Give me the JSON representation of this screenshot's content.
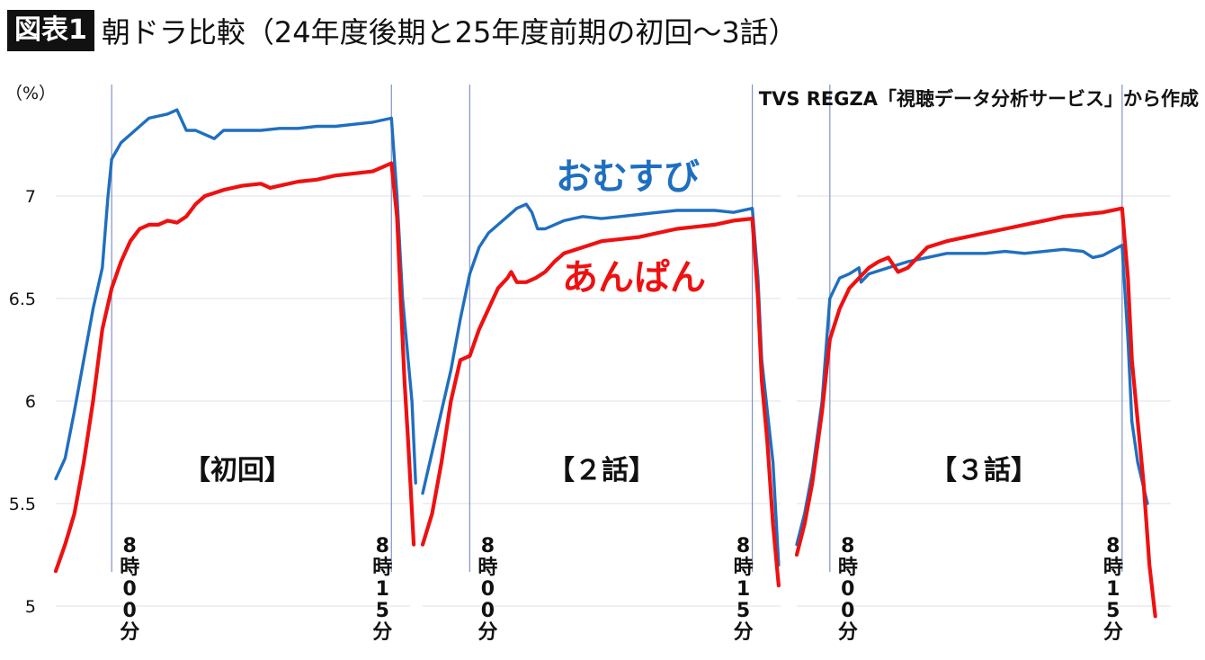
{
  "header": {
    "badge": "図表1",
    "title": "朝ドラ比較（24年度後期と25年度前期の初回〜3話）"
  },
  "y_unit": "（%）",
  "source": "TVS REGZA「視聴データ分析サービス」から作成",
  "colors": {
    "omusubi": "#1f6fc0",
    "anpan": "#ee1111",
    "marker": "#7f92c8",
    "grid": "#dde1e8"
  },
  "chart_data": {
    "type": "line",
    "ylim": [
      5,
      7.5
    ],
    "yticks": [
      {
        "value": 5,
        "label": "5"
      },
      {
        "value": 5.5,
        "label": "5.5"
      },
      {
        "value": 6,
        "label": "6"
      },
      {
        "value": 6.5,
        "label": "6.5"
      },
      {
        "value": 7,
        "label": "7"
      }
    ],
    "grid": true,
    "series_labels": [
      {
        "key": "omusubi",
        "name": "おむすび"
      },
      {
        "key": "anpan",
        "name": "あんぱん"
      }
    ],
    "panels": [
      {
        "label": "【初回】",
        "x_start": -3,
        "x_end": 16,
        "markers": [
          {
            "x": 0,
            "label": [
              "8",
              "時",
              "0",
              "0",
              "分"
            ]
          },
          {
            "x": 15,
            "label": [
              "8",
              "時",
              "1",
              "5",
              "分"
            ]
          }
        ],
        "series": [
          {
            "key": "omusubi",
            "points": [
              [
                -3,
                5.62
              ],
              [
                -2.5,
                5.72
              ],
              [
                -2,
                5.95
              ],
              [
                -1.5,
                6.2
              ],
              [
                -1,
                6.45
              ],
              [
                -0.5,
                6.65
              ],
              [
                -0.2,
                7.0
              ],
              [
                0,
                7.18
              ],
              [
                0.5,
                7.26
              ],
              [
                1,
                7.3
              ],
              [
                1.5,
                7.34
              ],
              [
                2,
                7.38
              ],
              [
                3,
                7.4
              ],
              [
                3.5,
                7.42
              ],
              [
                4,
                7.32
              ],
              [
                4.5,
                7.32
              ],
              [
                5,
                7.3
              ],
              [
                5.5,
                7.28
              ],
              [
                6,
                7.32
              ],
              [
                7,
                7.32
              ],
              [
                8,
                7.32
              ],
              [
                9,
                7.33
              ],
              [
                10,
                7.33
              ],
              [
                11,
                7.34
              ],
              [
                12,
                7.34
              ],
              [
                13,
                7.35
              ],
              [
                14,
                7.36
              ],
              [
                15,
                7.38
              ],
              [
                15.3,
                7.0
              ],
              [
                15.6,
                6.5
              ],
              [
                15.9,
                6.2
              ],
              [
                16.1,
                6.0
              ],
              [
                16.3,
                5.6
              ]
            ]
          },
          {
            "key": "anpan",
            "points": [
              [
                -3,
                5.17
              ],
              [
                -2.5,
                5.3
              ],
              [
                -2,
                5.45
              ],
              [
                -1.5,
                5.7
              ],
              [
                -1,
                6.0
              ],
              [
                -0.5,
                6.35
              ],
              [
                0,
                6.55
              ],
              [
                0.5,
                6.68
              ],
              [
                1,
                6.78
              ],
              [
                1.5,
                6.84
              ],
              [
                2,
                6.86
              ],
              [
                2.5,
                6.86
              ],
              [
                3,
                6.88
              ],
              [
                3.5,
                6.87
              ],
              [
                4,
                6.9
              ],
              [
                4.5,
                6.96
              ],
              [
                5,
                7.0
              ],
              [
                6,
                7.03
              ],
              [
                7,
                7.05
              ],
              [
                8,
                7.06
              ],
              [
                8.5,
                7.04
              ],
              [
                9,
                7.05
              ],
              [
                10,
                7.07
              ],
              [
                11,
                7.08
              ],
              [
                12,
                7.1
              ],
              [
                13,
                7.11
              ],
              [
                14,
                7.12
              ],
              [
                15,
                7.16
              ],
              [
                15.3,
                6.9
              ],
              [
                15.5,
                6.5
              ],
              [
                15.7,
                6.1
              ],
              [
                15.9,
                5.8
              ],
              [
                16.2,
                5.3
              ]
            ]
          }
        ]
      },
      {
        "label": "【２話】",
        "x_start": -2.5,
        "x_end": 16.5,
        "markers": [
          {
            "x": 0,
            "label": [
              "8",
              "時",
              "0",
              "0",
              "分"
            ]
          },
          {
            "x": 15,
            "label": [
              "8",
              "時",
              "1",
              "5",
              "分"
            ]
          }
        ],
        "series": [
          {
            "key": "omusubi",
            "points": [
              [
                -2.5,
                5.55
              ],
              [
                -2,
                5.75
              ],
              [
                -1.5,
                5.95
              ],
              [
                -1,
                6.15
              ],
              [
                -0.5,
                6.4
              ],
              [
                0,
                6.62
              ],
              [
                0.5,
                6.75
              ],
              [
                1,
                6.82
              ],
              [
                1.5,
                6.86
              ],
              [
                2,
                6.9
              ],
              [
                2.5,
                6.94
              ],
              [
                3,
                6.96
              ],
              [
                3.3,
                6.92
              ],
              [
                3.6,
                6.84
              ],
              [
                4,
                6.84
              ],
              [
                5,
                6.88
              ],
              [
                6,
                6.9
              ],
              [
                7,
                6.89
              ],
              [
                8,
                6.9
              ],
              [
                9,
                6.91
              ],
              [
                10,
                6.92
              ],
              [
                11,
                6.93
              ],
              [
                12,
                6.93
              ],
              [
                13,
                6.93
              ],
              [
                14,
                6.92
              ],
              [
                15,
                6.94
              ],
              [
                15.3,
                6.6
              ],
              [
                15.5,
                6.2
              ],
              [
                15.8,
                5.95
              ],
              [
                16.1,
                5.7
              ],
              [
                16.4,
                5.2
              ]
            ]
          },
          {
            "key": "anpan",
            "points": [
              [
                -2.5,
                5.3
              ],
              [
                -2,
                5.45
              ],
              [
                -1.5,
                5.7
              ],
              [
                -1,
                6.0
              ],
              [
                -0.5,
                6.2
              ],
              [
                0,
                6.22
              ],
              [
                0.5,
                6.35
              ],
              [
                1,
                6.45
              ],
              [
                1.5,
                6.55
              ],
              [
                2,
                6.6
              ],
              [
                2.2,
                6.63
              ],
              [
                2.5,
                6.58
              ],
              [
                3,
                6.58
              ],
              [
                3.5,
                6.6
              ],
              [
                4,
                6.63
              ],
              [
                4.5,
                6.68
              ],
              [
                5,
                6.72
              ],
              [
                6,
                6.75
              ],
              [
                7,
                6.78
              ],
              [
                8,
                6.79
              ],
              [
                9,
                6.8
              ],
              [
                10,
                6.82
              ],
              [
                11,
                6.84
              ],
              [
                12,
                6.85
              ],
              [
                13,
                6.86
              ],
              [
                14,
                6.88
              ],
              [
                15,
                6.89
              ],
              [
                15.3,
                6.5
              ],
              [
                15.5,
                6.1
              ],
              [
                15.8,
                5.8
              ],
              [
                16.1,
                5.4
              ],
              [
                16.4,
                5.1
              ]
            ]
          }
        ]
      },
      {
        "label": "【３話】",
        "x_start": -1.7,
        "x_end": 17.5,
        "markers": [
          {
            "x": 0,
            "label": [
              "8",
              "時",
              "0",
              "0",
              "分"
            ]
          },
          {
            "x": 15,
            "label": [
              "8",
              "時",
              "1",
              "5",
              "分"
            ]
          }
        ],
        "series": [
          {
            "key": "omusubi",
            "points": [
              [
                -1.7,
                5.3
              ],
              [
                -1.3,
                5.45
              ],
              [
                -0.9,
                5.65
              ],
              [
                -0.4,
                6.0
              ],
              [
                0,
                6.5
              ],
              [
                0.5,
                6.6
              ],
              [
                1,
                6.62
              ],
              [
                1.5,
                6.65
              ],
              [
                1.6,
                6.58
              ],
              [
                2,
                6.62
              ],
              [
                3,
                6.65
              ],
              [
                4,
                6.68
              ],
              [
                5,
                6.7
              ],
              [
                6,
                6.72
              ],
              [
                7,
                6.72
              ],
              [
                8,
                6.72
              ],
              [
                9,
                6.73
              ],
              [
                10,
                6.72
              ],
              [
                11,
                6.73
              ],
              [
                12,
                6.74
              ],
              [
                13,
                6.73
              ],
              [
                13.5,
                6.7
              ],
              [
                14,
                6.71
              ],
              [
                15,
                6.76
              ],
              [
                15.3,
                6.3
              ],
              [
                15.5,
                5.9
              ],
              [
                15.8,
                5.7
              ],
              [
                16.3,
                5.5
              ]
            ]
          },
          {
            "key": "anpan",
            "points": [
              [
                -1.7,
                5.25
              ],
              [
                -1.3,
                5.4
              ],
              [
                -0.9,
                5.6
              ],
              [
                -0.4,
                5.95
              ],
              [
                0,
                6.3
              ],
              [
                0.5,
                6.45
              ],
              [
                1,
                6.55
              ],
              [
                1.5,
                6.6
              ],
              [
                2,
                6.65
              ],
              [
                2.5,
                6.68
              ],
              [
                3,
                6.7
              ],
              [
                3.5,
                6.63
              ],
              [
                4,
                6.65
              ],
              [
                4.5,
                6.7
              ],
              [
                5,
                6.75
              ],
              [
                6,
                6.78
              ],
              [
                7,
                6.8
              ],
              [
                8,
                6.82
              ],
              [
                9,
                6.84
              ],
              [
                10,
                6.86
              ],
              [
                11,
                6.88
              ],
              [
                12,
                6.9
              ],
              [
                13,
                6.91
              ],
              [
                14,
                6.92
              ],
              [
                15,
                6.94
              ],
              [
                15.3,
                6.6
              ],
              [
                15.5,
                6.2
              ],
              [
                15.8,
                5.9
              ],
              [
                16.1,
                5.6
              ],
              [
                16.4,
                5.2
              ],
              [
                16.7,
                4.95
              ]
            ]
          }
        ]
      }
    ]
  }
}
